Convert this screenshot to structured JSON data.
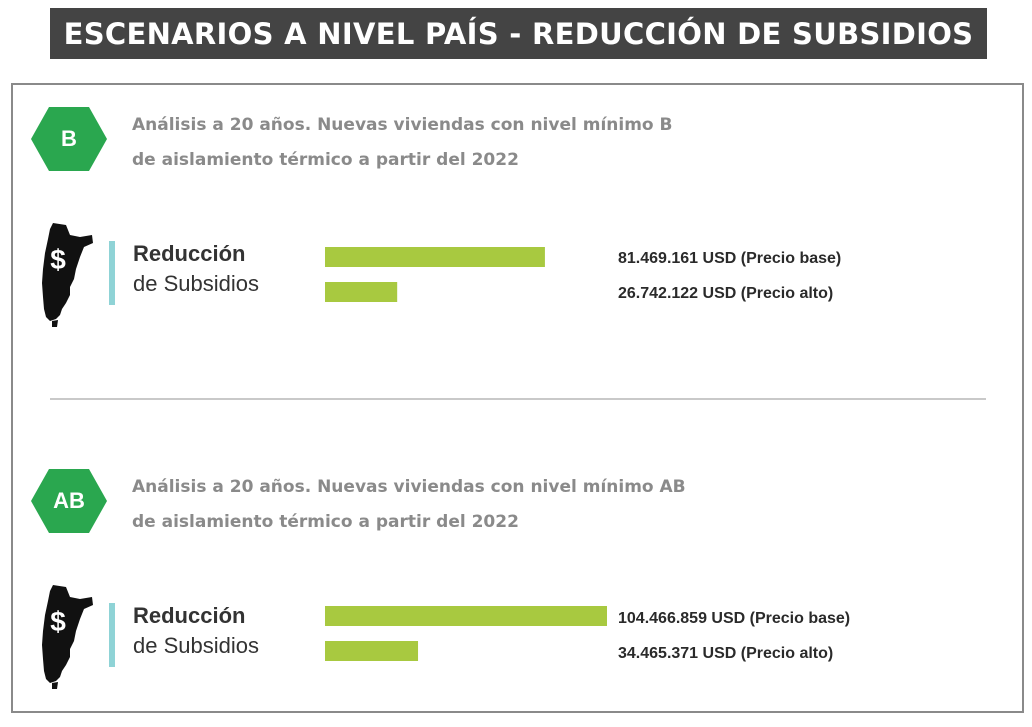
{
  "title": "ESCENARIOS A NIVEL PAÍS - REDUCCIÓN DE SUBSIDIOS",
  "colors": {
    "bar": "#a8c940",
    "hexagon": "#2aa74f",
    "accent": "#8fd3d6",
    "title_bg": "#444444"
  },
  "sections": [
    {
      "badge": "B",
      "line1": "Análisis a 20 años. Nuevas viviendas con nivel mínimo B",
      "line2": "de aislamiento térmico a partir del 2022",
      "icon": "argentina-map-dollar-icon",
      "label_bold": "Reducción",
      "label_normal": "de Subsidios",
      "value_labels": [
        "81.469.161 USD (Precio base)",
        "26.742.122 USD (Precio alto)"
      ]
    },
    {
      "badge": "AB",
      "line1": "Análisis a 20 años. Nuevas viviendas con nivel mínimo AB",
      "line2": "de aislamiento térmico a partir del 2022",
      "icon": "argentina-map-dollar-icon",
      "label_bold": "Reducción",
      "label_normal": "de Subsidios",
      "value_labels": [
        "104.466.859 USD (Precio base)",
        "34.465.371 USD (Precio alto)"
      ]
    }
  ],
  "chart_data": [
    {
      "type": "bar",
      "orientation": "horizontal",
      "categories": [
        "Precio base",
        "Precio alto"
      ],
      "values": [
        81469161,
        26742122
      ],
      "unit": "USD"
    },
    {
      "type": "bar",
      "orientation": "horizontal",
      "categories": [
        "Precio base",
        "Precio alto"
      ],
      "values": [
        104466859,
        34465371
      ],
      "unit": "USD"
    }
  ]
}
